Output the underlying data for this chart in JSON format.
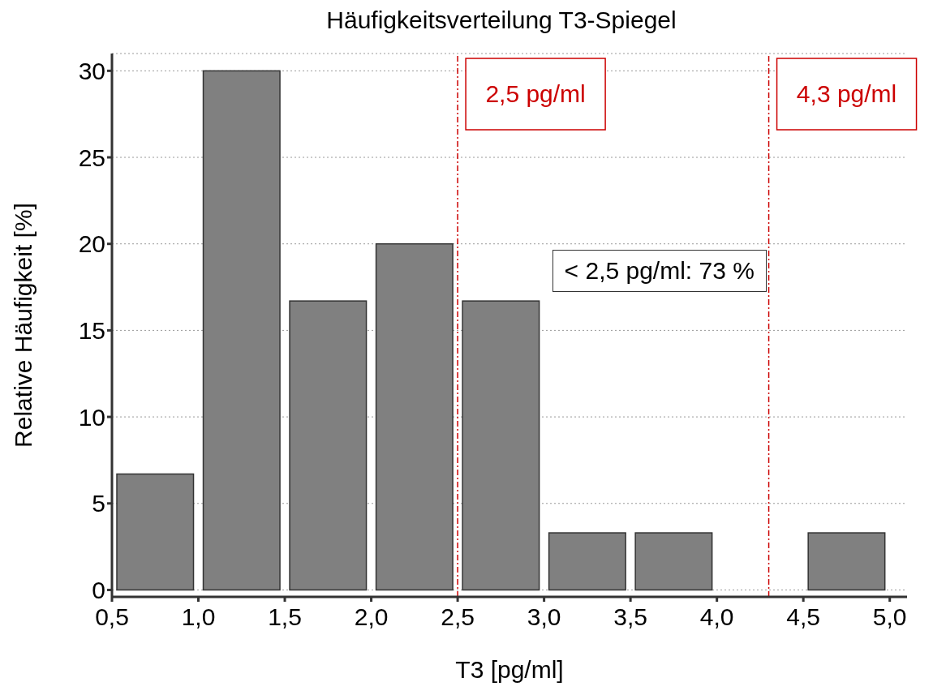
{
  "chart_data": {
    "type": "histogram",
    "title": "Häufigkeitsverteilung T3-Spiegel",
    "xlabel": "T3 [pg/ml]",
    "ylabel": "Relative Häufigkeit [%]",
    "bins": [
      0.5,
      1.0,
      1.5,
      2.0,
      2.5,
      3.0,
      3.5,
      4.0,
      4.5,
      5.0
    ],
    "values": [
      6.7,
      30,
      16.7,
      20,
      16.7,
      3.3,
      3.3,
      0,
      3.3
    ],
    "color": "#808080",
    "xlim": [
      0.5,
      5.1
    ],
    "ylim": [
      -0.4,
      31
    ],
    "xticks": [
      {
        "value": 0.5,
        "label": "0,5"
      },
      {
        "value": 1.0,
        "label": "1,0"
      },
      {
        "value": 1.5,
        "label": "1,5"
      },
      {
        "value": 2.0,
        "label": "2,0"
      },
      {
        "value": 2.5,
        "label": "2,5"
      },
      {
        "value": 3.0,
        "label": "3,0"
      },
      {
        "value": 3.5,
        "label": "3,5"
      },
      {
        "value": 4.0,
        "label": "4,0"
      },
      {
        "value": 4.5,
        "label": "4,5"
      },
      {
        "value": 5.0,
        "label": "5,0"
      }
    ],
    "yticks": [
      0,
      5,
      10,
      15,
      20,
      25,
      30
    ],
    "grid": "y",
    "ref_lines": [
      {
        "axis": "x",
        "value": 2.5,
        "label": "2,5 pg/ml",
        "color": "#cc0000",
        "line_style": "dashdot"
      },
      {
        "axis": "x",
        "value": 4.3,
        "label": "4,3 pg/ml",
        "color": "#cc0000",
        "line_style": "dashdot"
      }
    ],
    "annotations": [
      "< 2,5 pg/ml: 73 %"
    ]
  }
}
